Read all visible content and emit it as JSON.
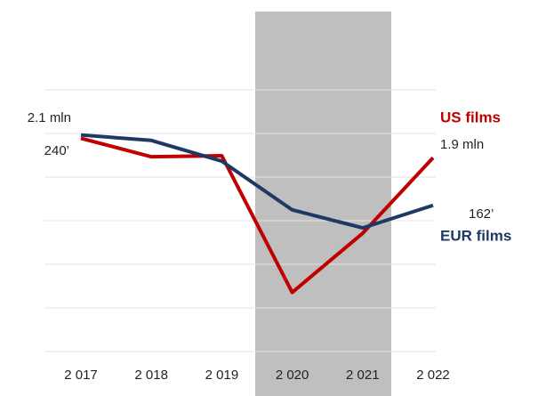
{
  "chart_data": {
    "type": "line",
    "categories": [
      "2 017",
      "2 018",
      "2 019",
      "2 020",
      "2 021",
      "2 022"
    ],
    "series": [
      {
        "name": "US films",
        "color": "#c00000",
        "values": [
          2.1,
          1.91,
          1.92,
          0.51,
          1.12,
          1.9
        ],
        "value_labels": [
          "2.1 mln",
          null,
          null,
          null,
          null,
          "1.9 mln"
        ]
      },
      {
        "name": "EUR films",
        "color": "#1f3864",
        "axis": "y2",
        "values": [
          240,
          234,
          211,
          157,
          137,
          162
        ],
        "value_labels": [
          "240’",
          null,
          null,
          null,
          null,
          "162’"
        ]
      }
    ],
    "ylim": [
      -0.1,
      2.6
    ],
    "y2lim": [
      0,
      290
    ],
    "grid": true
  }
}
